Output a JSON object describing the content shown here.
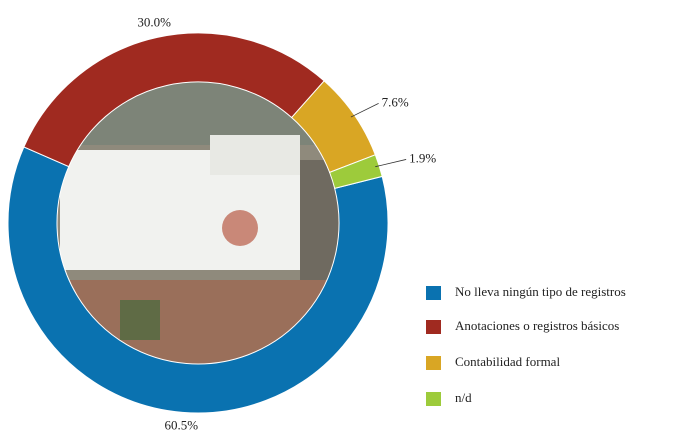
{
  "chart_data": {
    "type": "donut",
    "categories": [
      "No lleva ningún tipo de registros",
      "Anotaciones o registros básicos",
      "Contabilidad formal",
      "n/d"
    ],
    "values": [
      60.5,
      30.0,
      7.6,
      1.9
    ],
    "value_labels": [
      "60.5%",
      "30.0%",
      "7.6%",
      "1.9%"
    ],
    "colors": [
      "#0a72b0",
      "#a02a20",
      "#d9a624",
      "#9dcb3b"
    ],
    "legend": "right"
  }
}
